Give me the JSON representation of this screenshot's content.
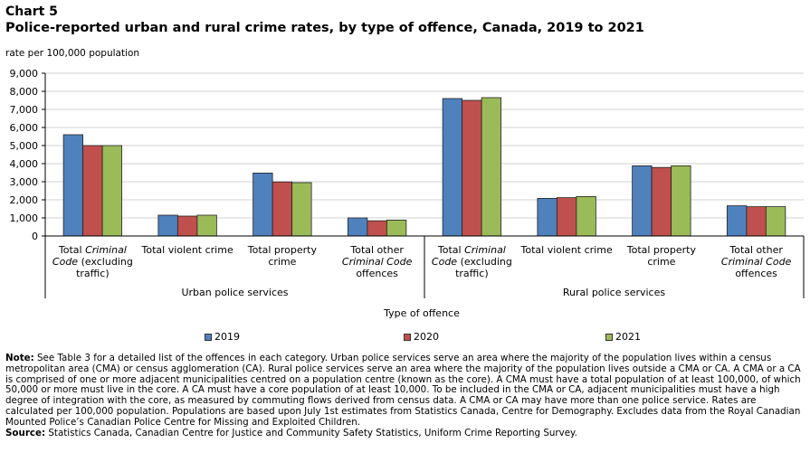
{
  "header": {
    "chart_number": "Chart 5",
    "title": "Police-reported urban and rural crime rates, by type of offence, Canada, 2019 to 2021",
    "y_axis_label": "rate per 100,000 population"
  },
  "notes": {
    "note_label": "Note:",
    "note_text": " See Table 3 for a detailed list of the offences in each category. Urban police services serve an area where the majority of the population lives within a census metropolitan area (CMA) or census agglomeration (CA). Rural police services serve an area where the majority of the population lives outside a CMA or CA. A CMA or a CA is comprised of one or more adjacent municipalities centred on a population centre (known as the core). A CMA must have a total population of at least 100,000, of which 50,000 or more must live in the core. A CA must have a core population of at least 10,000. To be included in the CMA or CA, adjacent municipalities must have a high degree of integration with the core, as measured by commuting flows derived from census data. A CMA or CA may have more than one police service. Rates are calculated per 100,000 population. Populations are based upon July 1st estimates from Statistics Canada, Centre for Demography. Excludes data from the Royal Canadian Mounted Police’s Canadian Police Centre for Missing and Exploited Children.",
    "source_label": "Source:",
    "source_text": " Statistics Canada, Canadian Centre for Justice and Community Safety Statistics, Uniform Crime Reporting Survey."
  },
  "chart_data": {
    "type": "bar",
    "title": "Police-reported urban and rural crime rates, by type of offence, Canada, 2019 to 2021",
    "xlabel": "Type of offence",
    "ylabel": "rate per 100,000 population",
    "ylim": [
      0,
      9000
    ],
    "yticks": [
      0,
      1000,
      2000,
      3000,
      4000,
      5000,
      6000,
      7000,
      8000,
      9000
    ],
    "ytick_labels": [
      "0",
      "1,000",
      "2,000",
      "3,000",
      "4,000",
      "5,000",
      "6,000",
      "7,000",
      "8,000",
      "9,000"
    ],
    "grid": true,
    "legend_position": "bottom",
    "groups": [
      "Urban police services",
      "Rural police services"
    ],
    "categories": [
      [
        "Total ",
        "Criminal",
        "Code (excluding",
        "traffic)"
      ],
      [
        "Total violent crime"
      ],
      [
        "Total property",
        "crime"
      ],
      [
        "Total other",
        "Criminal Code",
        "offences"
      ],
      [
        "Total ",
        "Criminal",
        "Code (excluding",
        "traffic)"
      ],
      [
        "Total violent crime"
      ],
      [
        "Total property",
        "crime"
      ],
      [
        "Total other",
        "Criminal Code",
        "offences"
      ]
    ],
    "series": [
      {
        "name": "2019",
        "color": "#4f81bd",
        "values": [
          5600,
          1150,
          3480,
          1000,
          7600,
          2080,
          3880,
          1670
        ]
      },
      {
        "name": "2020",
        "color": "#c0504d",
        "values": [
          5000,
          1100,
          2990,
          840,
          7500,
          2120,
          3790,
          1620
        ]
      },
      {
        "name": "2021",
        "color": "#9bbb59",
        "values": [
          5000,
          1150,
          2950,
          880,
          7650,
          2180,
          3880,
          1620
        ]
      }
    ]
  }
}
